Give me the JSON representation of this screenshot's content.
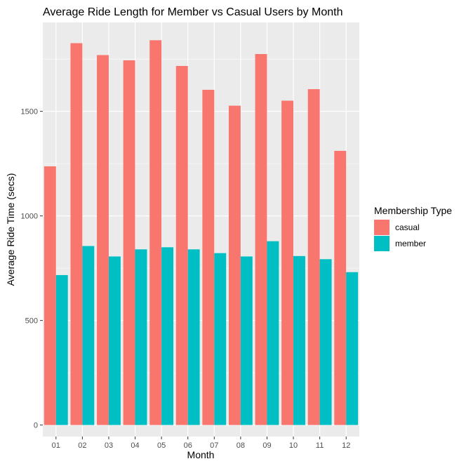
{
  "chart_data": {
    "type": "bar",
    "title": "Average Ride Length for Member vs Casual Users by Month",
    "xlabel": "Month",
    "ylabel": "Average Ride Time (secs)",
    "categories": [
      "01",
      "02",
      "03",
      "04",
      "05",
      "06",
      "07",
      "08",
      "09",
      "10",
      "11",
      "12"
    ],
    "series": [
      {
        "name": "casual",
        "color": "#F8766D",
        "values": [
          1237,
          1826,
          1769,
          1744,
          1840,
          1717,
          1603,
          1527,
          1774,
          1551,
          1606,
          1311
        ]
      },
      {
        "name": "member",
        "color": "#00BFC4",
        "values": [
          717,
          856,
          806,
          840,
          850,
          840,
          822,
          806,
          879,
          808,
          793,
          731
        ]
      }
    ],
    "ylim": [
      -55,
      1925
    ],
    "yticks": [
      0,
      500,
      1000,
      1500
    ],
    "legend": {
      "title": "Membership Type",
      "position": "right"
    },
    "grid": true
  }
}
